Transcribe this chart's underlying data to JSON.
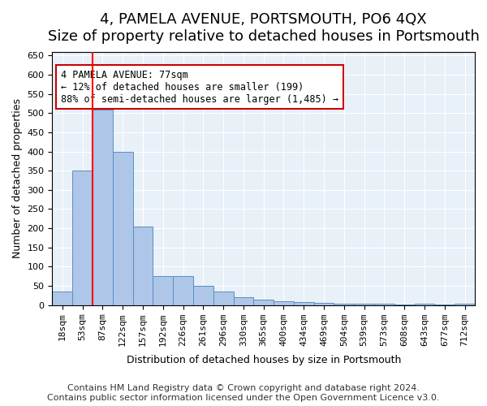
{
  "title": "4, PAMELA AVENUE, PORTSMOUTH, PO6 4QX",
  "subtitle": "Size of property relative to detached houses in Portsmouth",
  "xlabel": "Distribution of detached houses by size in Portsmouth",
  "ylabel": "Number of detached properties",
  "categories": [
    "18sqm",
    "53sqm",
    "87sqm",
    "122sqm",
    "157sqm",
    "192sqm",
    "226sqm",
    "261sqm",
    "296sqm",
    "330sqm",
    "365sqm",
    "400sqm",
    "434sqm",
    "469sqm",
    "504sqm",
    "539sqm",
    "573sqm",
    "608sqm",
    "643sqm",
    "677sqm",
    "712sqm"
  ],
  "values": [
    35,
    350,
    510,
    400,
    205,
    75,
    75,
    50,
    35,
    20,
    15,
    10,
    8,
    5,
    4,
    4,
    4,
    2,
    4,
    2,
    4
  ],
  "bar_color": "#aec6e8",
  "bar_edge_color": "#5a8fc2",
  "red_line_index": 2,
  "annotation_text": "4 PAMELA AVENUE: 77sqm\n← 12% of detached houses are smaller (199)\n88% of semi-detached houses are larger (1,485) →",
  "annotation_box_color": "#ffffff",
  "annotation_box_edge_color": "#cc0000",
  "ylim": [
    0,
    660
  ],
  "yticks": [
    0,
    50,
    100,
    150,
    200,
    250,
    300,
    350,
    400,
    450,
    500,
    550,
    600,
    650
  ],
  "footer_line1": "Contains HM Land Registry data © Crown copyright and database right 2024.",
  "footer_line2": "Contains public sector information licensed under the Open Government Licence v3.0.",
  "bg_color": "#e8f0f8",
  "fig_bg_color": "#ffffff",
  "title_fontsize": 13,
  "subtitle_fontsize": 11,
  "label_fontsize": 9,
  "tick_fontsize": 8,
  "footer_fontsize": 8
}
